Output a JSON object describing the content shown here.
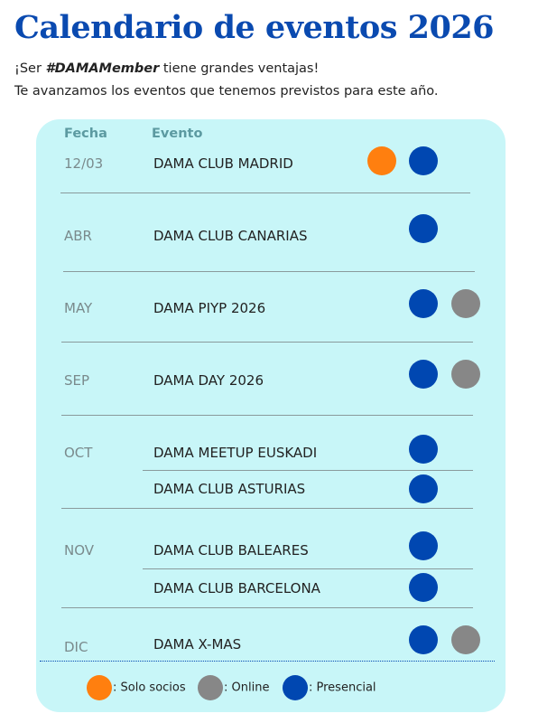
{
  "header": {
    "title": "Calendario de eventos 2026",
    "intro_1_before": "¡Ser ",
    "intro_1_highlight": "#DAMAMember",
    "intro_1_after": " tiene grandes ventajas!",
    "intro_2": "Te avanzamos los eventos que tenemos previstos para este año."
  },
  "table": {
    "columns": [
      "Fecha",
      "Evento"
    ],
    "rows": [
      {
        "date": "12/03",
        "events": [
          "DAMA CLUB MADRID"
        ]
      },
      {
        "date": "ABR",
        "events": [
          "DAMA CLUB CANARIAS"
        ]
      },
      {
        "date": "MAY",
        "events": [
          "DAMA PIYP 2026"
        ]
      },
      {
        "date": "SEP",
        "events": [
          "DAMA DAY 2026"
        ]
      },
      {
        "date": "OCT",
        "events": [
          "DAMA MEETUP EUSKADI",
          "DAMA CLUB ASTURIAS"
        ]
      },
      {
        "date": "NOV",
        "events": [
          "DAMA CLUB BALEARES",
          "DAMA CLUB BARCELONA"
        ]
      },
      {
        "date": "DIC",
        "events": [
          "DAMA X-MAS"
        ]
      }
    ]
  },
  "legend": [
    ": Solo socios",
    ": Online",
    ": Presencial"
  ]
}
